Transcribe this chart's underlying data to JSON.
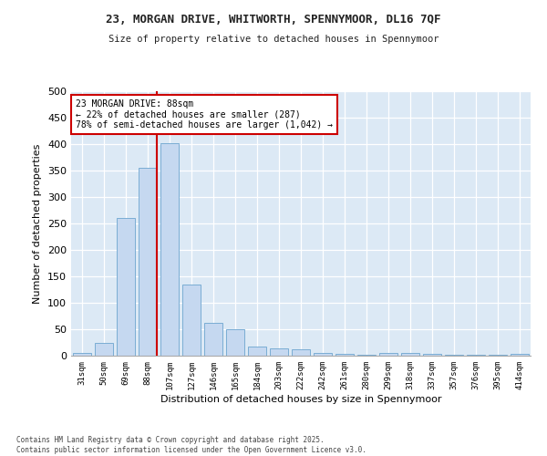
{
  "title1": "23, MORGAN DRIVE, WHITWORTH, SPENNYMOOR, DL16 7QF",
  "title2": "Size of property relative to detached houses in Spennymoor",
  "xlabel": "Distribution of detached houses by size in Spennymoor",
  "ylabel": "Number of detached properties",
  "bar_labels": [
    "31sqm",
    "50sqm",
    "69sqm",
    "88sqm",
    "107sqm",
    "127sqm",
    "146sqm",
    "165sqm",
    "184sqm",
    "203sqm",
    "222sqm",
    "242sqm",
    "261sqm",
    "280sqm",
    "299sqm",
    "318sqm",
    "337sqm",
    "357sqm",
    "376sqm",
    "395sqm",
    "414sqm"
  ],
  "bar_values": [
    5,
    25,
    260,
    355,
    402,
    135,
    62,
    50,
    17,
    13,
    12,
    5,
    3,
    2,
    5,
    6,
    3,
    1,
    2,
    1,
    3
  ],
  "bar_color": "#c5d8f0",
  "bar_edge_color": "#7aadd4",
  "vline_color": "#cc0000",
  "annotation_text": "23 MORGAN DRIVE: 88sqm\n← 22% of detached houses are smaller (287)\n78% of semi-detached houses are larger (1,042) →",
  "annotation_box_color": "#ffffff",
  "annotation_box_edge": "#cc0000",
  "ylim": [
    0,
    500
  ],
  "yticks": [
    0,
    50,
    100,
    150,
    200,
    250,
    300,
    350,
    400,
    450,
    500
  ],
  "bg_color": "#dce9f5",
  "grid_color": "#ffffff",
  "fig_bg_color": "#ffffff",
  "footer1": "Contains HM Land Registry data © Crown copyright and database right 2025.",
  "footer2": "Contains public sector information licensed under the Open Government Licence v3.0."
}
